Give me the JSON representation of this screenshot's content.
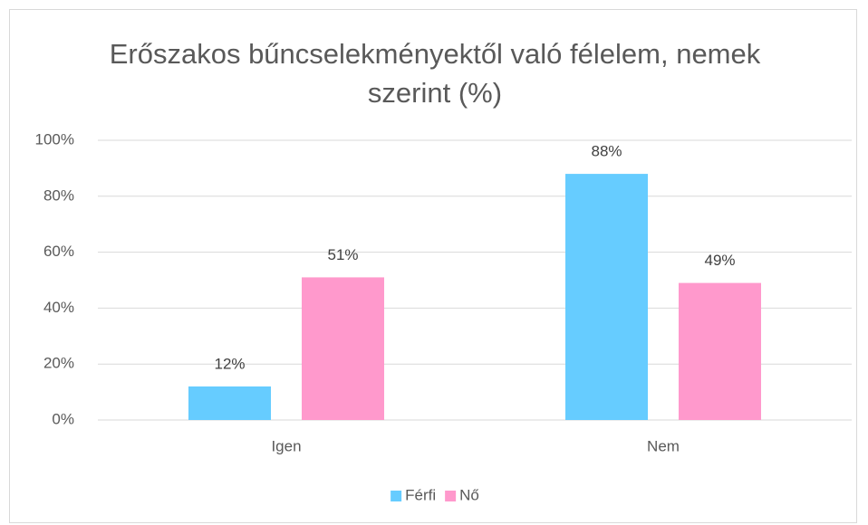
{
  "chart_data": {
    "type": "bar",
    "title": "Erőszakos bűncselekményektől való félelem, nemek szerint (%)",
    "categories": [
      "Igen",
      "Nem"
    ],
    "series": [
      {
        "name": "Férfi",
        "color": "#66ccff",
        "values": [
          12,
          88
        ],
        "value_labels": [
          "12%",
          "88%"
        ]
      },
      {
        "name": "Nő",
        "color": "#ff99cc",
        "values": [
          51,
          49
        ],
        "value_labels": [
          "51%",
          "49%"
        ]
      }
    ],
    "ylim": [
      0,
      100
    ],
    "yticks": [
      {
        "value": 0,
        "label": "0%"
      },
      {
        "value": 20,
        "label": "20%"
      },
      {
        "value": 40,
        "label": "40%"
      },
      {
        "value": 60,
        "label": "60%"
      },
      {
        "value": 80,
        "label": "80%"
      },
      {
        "value": 100,
        "label": "100%"
      }
    ],
    "grid": true,
    "legend": "bottom"
  }
}
